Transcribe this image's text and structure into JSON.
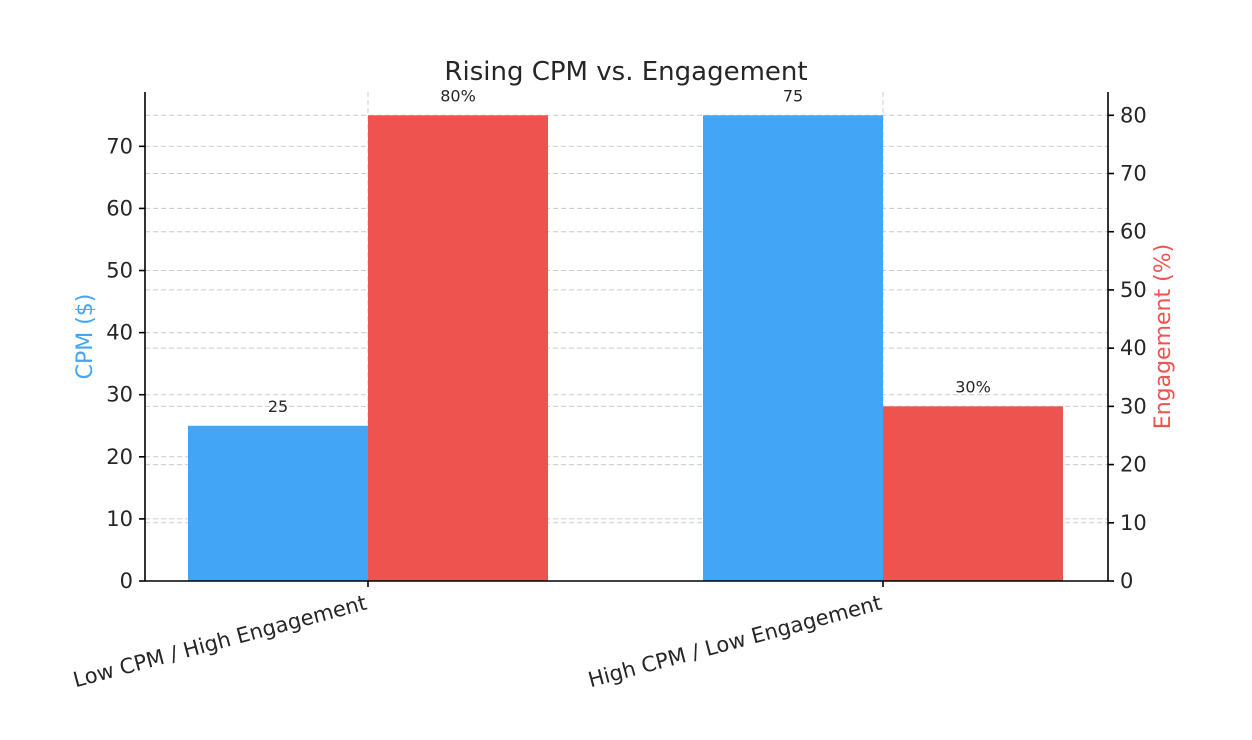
{
  "chart_data": {
    "type": "bar",
    "title": "Rising CPM vs. Engagement",
    "categories": [
      "Low CPM / High Engagement",
      "High CPM / Low Engagement"
    ],
    "series": [
      {
        "name": "CPM ($)",
        "axis": "left",
        "color": "#42a5f5",
        "values": [
          25,
          75
        ],
        "data_labels": [
          "25",
          "75"
        ]
      },
      {
        "name": "Engagement (%)",
        "axis": "right",
        "color": "#ef5350",
        "values": [
          80,
          30
        ],
        "data_labels": [
          "80%",
          "30%"
        ]
      }
    ],
    "y_left": {
      "label": "CPM ($)",
      "label_color": "#42a5f5",
      "ylim": [
        0,
        78.75
      ],
      "ticks": [
        0,
        10,
        20,
        30,
        40,
        50,
        60,
        70
      ]
    },
    "y_right": {
      "label": "Engagement (%)",
      "label_color": "#ef5350",
      "ylim": [
        0,
        84
      ],
      "ticks": [
        0,
        10,
        20,
        30,
        40,
        50,
        60,
        70,
        80
      ]
    },
    "grid": true,
    "x_tick_rotation_deg": 15
  }
}
